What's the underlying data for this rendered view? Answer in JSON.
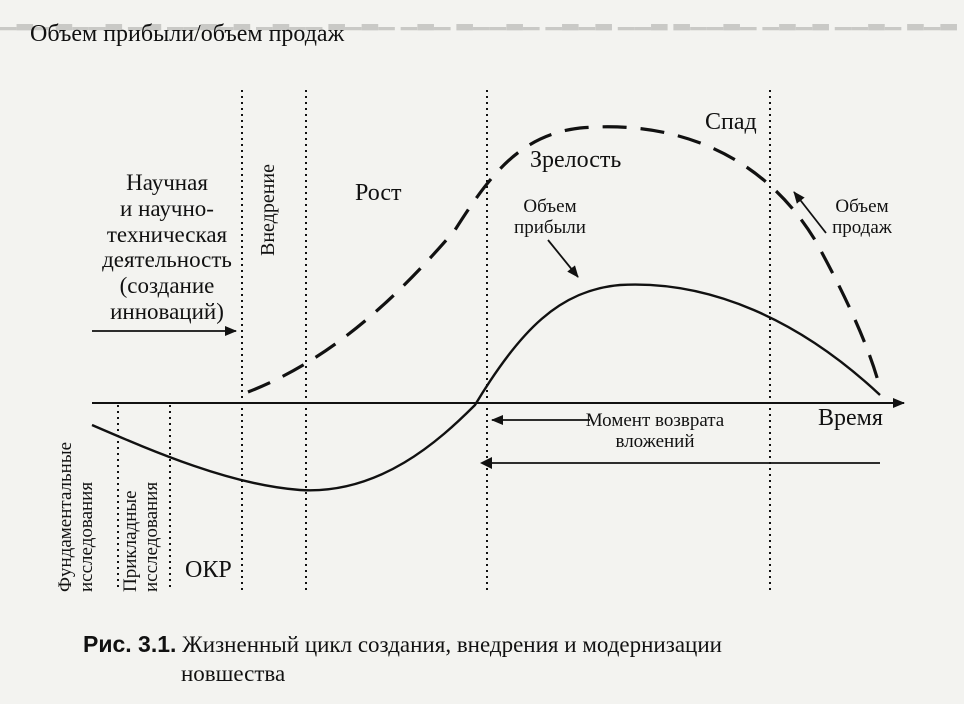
{
  "diagram": {
    "y_axis_title": "Объем прибыли/объем продаж",
    "x_axis_label": "Время",
    "stages": {
      "research": [
        "Научная",
        "и научно-",
        "техническая",
        "деятельность",
        "(создание",
        "инноваций)"
      ],
      "introduction": "Внедрение",
      "growth": "Рост",
      "maturity": "Зрелость",
      "decline": "Спад"
    },
    "curves": {
      "profit": [
        "Объем",
        "прибыли"
      ],
      "sales": [
        "Объем",
        "продаж"
      ]
    },
    "payback": [
      "Момент возврата",
      "вложений"
    ],
    "bottom_stages": {
      "fundamental": [
        "Фундаментальные",
        "исследования"
      ],
      "applied": [
        "Прикладные",
        "исследования"
      ],
      "okr": "ОКР"
    }
  },
  "caption": {
    "number": "Рис. 3.1.",
    "text_line1": "Жизненный цикл создания, внедрения и модернизации",
    "text_line2": "новшества"
  },
  "colors": {
    "ink": "#111111",
    "paper": "#f3f3f0",
    "bleed": "#c9c9c6"
  }
}
